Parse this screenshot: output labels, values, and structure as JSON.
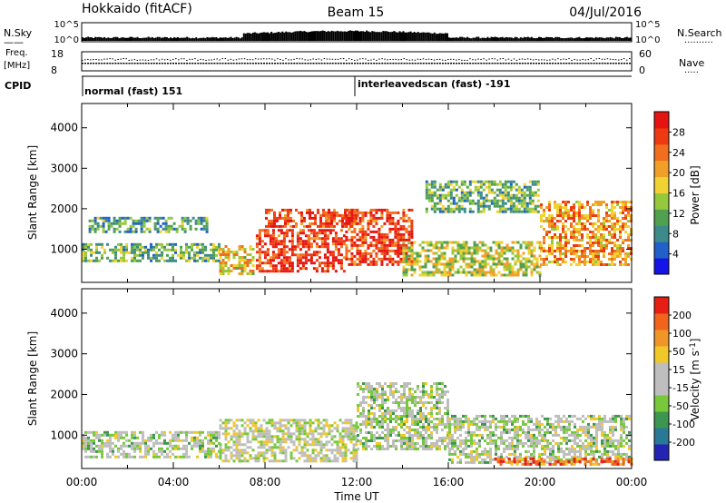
{
  "header": {
    "station": "Hokkaido (fitACF)",
    "beam": "Beam 15",
    "date": "04/Jul/2016"
  },
  "top_panels": {
    "nsky_label": "N.Sky",
    "nsky_ticks": [
      "10^5",
      "10^0"
    ],
    "nsearch_label": "N.Search",
    "nsearch_ticks": [
      "10^5",
      "10^0"
    ],
    "freq_label_1": "Freq.",
    "freq_label_2": "[MHz]",
    "freq_ticks": [
      "18",
      "8"
    ],
    "nave_label": "Nave",
    "nave_ticks": [
      "60",
      "0"
    ],
    "cpid_label": "CPID",
    "cpid_mode_1": "normal (fast) 151",
    "cpid_mode_2": "interleavedscan (fast) -191"
  },
  "chart_data": [
    {
      "type": "heatmap",
      "title": "",
      "xlabel": "",
      "ylabel": "Slant Range [km]",
      "xlim_hours": [
        0,
        24
      ],
      "ylim": [
        180,
        4600
      ],
      "y_ticks": [
        "1000",
        "2000",
        "3000",
        "4000"
      ],
      "colorbar": {
        "label": "Power [dB]",
        "ticks": [
          "4",
          "8",
          "12",
          "16",
          "20",
          "24",
          "28"
        ],
        "colors": [
          "#1414e6",
          "#2060c8",
          "#3c8a8a",
          "#50a050",
          "#96c83c",
          "#f0d232",
          "#f0a028",
          "#f06e1e",
          "#ee3a12",
          "#e61410"
        ]
      },
      "regions": [
        {
          "t": [
            0,
            6
          ],
          "r": [
            650,
            1150
          ],
          "level": 0.35
        },
        {
          "t": [
            0.3,
            5.5
          ],
          "r": [
            1400,
            1800
          ],
          "level": 0.3
        },
        {
          "t": [
            6,
            7.5
          ],
          "r": [
            350,
            1100
          ],
          "level": 0.6
        },
        {
          "t": [
            7.6,
            11.5
          ],
          "r": [
            400,
            1500
          ],
          "level": 0.9
        },
        {
          "t": [
            8,
            12
          ],
          "r": [
            1500,
            2000
          ],
          "level": 0.85
        },
        {
          "t": [
            11.5,
            14.5
          ],
          "r": [
            600,
            2000
          ],
          "level": 0.9
        },
        {
          "t": [
            14,
            20
          ],
          "r": [
            300,
            1200
          ],
          "level": 0.5
        },
        {
          "t": [
            15,
            20
          ],
          "r": [
            1900,
            2700
          ],
          "level": 0.35
        },
        {
          "t": [
            20,
            24
          ],
          "r": [
            600,
            2200
          ],
          "level": 0.7
        }
      ]
    },
    {
      "type": "heatmap",
      "title": "",
      "xlabel": "Time UT",
      "ylabel": "Slant Range [km]",
      "xlim_hours": [
        0,
        24
      ],
      "ylim": [
        180,
        4600
      ],
      "y_ticks": [
        "1000",
        "2000",
        "3000",
        "4000"
      ],
      "x_ticks": [
        "00:00",
        "04:00",
        "08:00",
        "12:00",
        "16:00",
        "20:00",
        "00:00"
      ],
      "colorbar": {
        "label": "Velocity [m s^-1]",
        "ticks": [
          "200",
          "100",
          "50",
          "15",
          "-15",
          "-50",
          "-100",
          "-200"
        ],
        "colors": [
          "#2424b4",
          "#287896",
          "#3c9650",
          "#78c83c",
          "#bebebe",
          "#bebebe",
          "#f0c828",
          "#f09628",
          "#f0641e",
          "#e61e14"
        ]
      },
      "regions": [
        {
          "t": [
            0,
            6
          ],
          "r": [
            400,
            1100
          ],
          "level": 0.45
        },
        {
          "t": [
            6,
            12
          ],
          "r": [
            300,
            1400
          ],
          "level": 0.5
        },
        {
          "t": [
            12,
            16
          ],
          "r": [
            600,
            2300
          ],
          "level": 0.45
        },
        {
          "t": [
            16,
            24
          ],
          "r": [
            300,
            1500
          ],
          "level": 0.45
        },
        {
          "t": [
            18,
            24
          ],
          "r": [
            250,
            450
          ],
          "level": 0.85
        }
      ]
    }
  ]
}
